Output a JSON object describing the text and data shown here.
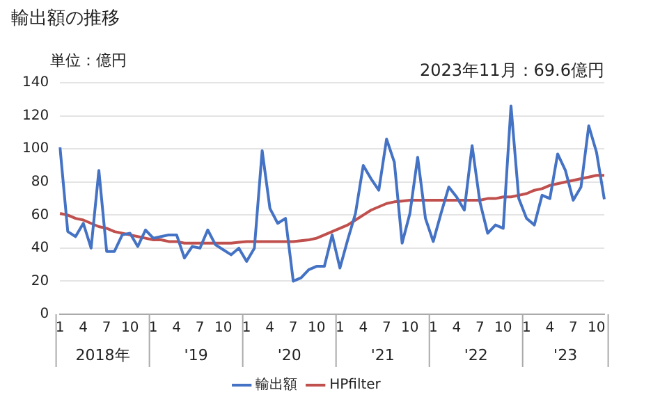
{
  "chart_data": {
    "type": "line",
    "title": "輸出額の推移",
    "ylabel": "単位：億円",
    "categories": [
      "1",
      null,
      null,
      "4",
      null,
      null,
      "7",
      null,
      null,
      "10",
      null,
      null,
      "1",
      null,
      null,
      "4",
      null,
      null,
      "7",
      null,
      null,
      "10",
      null,
      null,
      "1",
      null,
      null,
      "4",
      null,
      null,
      "7",
      null,
      null,
      "10",
      null,
      null,
      "1",
      null,
      null,
      "4",
      null,
      null,
      "7",
      null,
      null,
      "10",
      null,
      null,
      "1",
      null,
      null,
      "4",
      null,
      null,
      "7",
      null,
      null,
      "10",
      null,
      null,
      "1",
      null,
      null,
      "4",
      null,
      null,
      "7",
      null,
      null,
      "10",
      null
    ],
    "series": [
      {
        "name": "輸出額",
        "color": "#4472c4",
        "values": [
          101,
          50,
          47,
          55,
          40,
          87,
          38,
          38,
          48,
          49,
          41,
          51,
          46,
          47,
          48,
          48,
          34,
          41,
          40,
          51,
          42,
          39,
          36,
          40,
          32,
          40,
          99,
          64,
          55,
          58,
          20,
          22,
          27,
          29,
          29,
          48,
          28,
          45,
          61,
          90,
          82,
          75,
          106,
          92,
          43,
          61,
          95,
          58,
          44,
          61,
          77,
          71,
          63,
          102,
          68,
          49,
          54,
          52,
          126,
          70,
          58,
          54,
          72,
          70,
          97,
          87,
          69,
          77,
          114,
          98,
          69.6
        ]
      },
      {
        "name": "HPfilter",
        "color": "#c0504d",
        "values": [
          61,
          60,
          58,
          57,
          55,
          53,
          52,
          50,
          49,
          48,
          47,
          46,
          45,
          45,
          44,
          44,
          43,
          43,
          43,
          43,
          43,
          43,
          43,
          43.5,
          44,
          44,
          44,
          44,
          44,
          44,
          44,
          44.5,
          45,
          46,
          48,
          50,
          52,
          54,
          57,
          60,
          63,
          65,
          67,
          68,
          68.5,
          69,
          69,
          69,
          69,
          69,
          69,
          69,
          69,
          69,
          69,
          70,
          70,
          71,
          71,
          72,
          73,
          75,
          76,
          78,
          79,
          80,
          81,
          82,
          83,
          84,
          84
        ]
      }
    ],
    "ylim": [
      0,
      140
    ],
    "yticks": [
      0,
      20,
      40,
      60,
      80,
      100,
      120,
      140
    ],
    "grid": "y",
    "legend": "bottom",
    "annotations": [
      "2023年11月：69.6億円",
      "2018年",
      "'19",
      "'20",
      "'21",
      "'22",
      "'23"
    ]
  }
}
